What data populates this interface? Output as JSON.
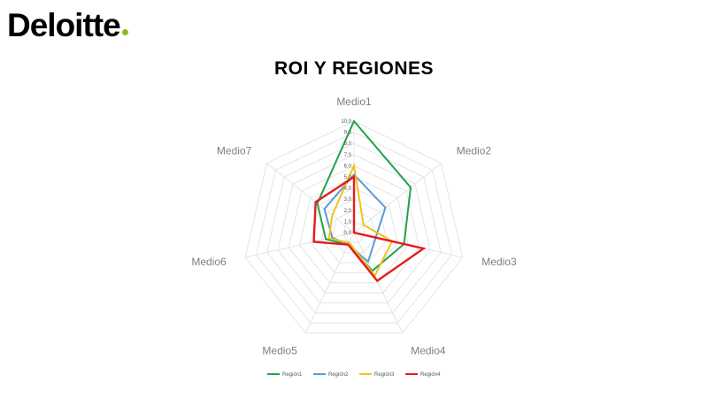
{
  "header": {
    "brand": "Deloitte",
    "brand_dot_color": "#86bc25"
  },
  "chart_data": {
    "type": "radar",
    "title": "ROI Y REGIONES",
    "categories": [
      "Medio1",
      "Medio2",
      "Medio3",
      "Medio4",
      "Medio5",
      "Medio6",
      "Medio7"
    ],
    "rlim": [
      0,
      10
    ],
    "ticks": [
      "0,0",
      "1,0",
      "2,0",
      "3,0",
      "4,0",
      "5,0",
      "6,0",
      "7,0",
      "8,0",
      "9,0",
      "10,0"
    ],
    "grid": true,
    "legend_position": "bottom",
    "series": [
      {
        "name": "Región1",
        "color": "#1fa34a",
        "values": [
          10.0,
          6.5,
          4.6,
          3.8,
          1.2,
          2.6,
          4.2
        ]
      },
      {
        "name": "Región2",
        "color": "#5b9bd5",
        "values": [
          5.2,
          3.6,
          2.0,
          2.9,
          1.2,
          2.0,
          3.4
        ]
      },
      {
        "name": "Región3",
        "color": "#f2c21b",
        "values": [
          6.0,
          1.1,
          3.5,
          4.3,
          1.0,
          2.3,
          2.5
        ]
      },
      {
        "name": "Región4",
        "color": "#e31c1c",
        "values": [
          5.0,
          0.0,
          6.4,
          4.8,
          1.2,
          3.7,
          4.4
        ]
      }
    ]
  }
}
